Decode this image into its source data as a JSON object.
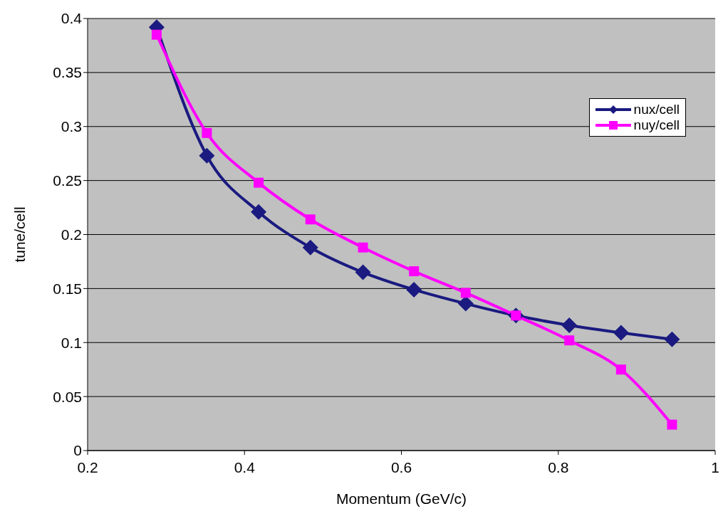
{
  "chart_data": {
    "type": "line",
    "xlabel": "Momentum (GeV/c)",
    "ylabel": "tune/cell",
    "xlim": [
      0.2,
      1
    ],
    "xticks": [
      0.2,
      0.4,
      0.6,
      0.8,
      1
    ],
    "ylim": [
      0,
      0.4
    ],
    "yticks": [
      0,
      0.05,
      0.1,
      0.15,
      0.2,
      0.25,
      0.3,
      0.35,
      0.4
    ],
    "x": [
      0.288,
      0.352,
      0.418,
      0.484,
      0.551,
      0.616,
      0.682,
      0.746,
      0.814,
      0.88,
      0.945
    ],
    "series": [
      {
        "name": "nux/cell",
        "color": "#1a1a80",
        "marker": "diamond",
        "values": [
          0.392,
          0.273,
          0.221,
          0.188,
          0.165,
          0.149,
          0.136,
          0.125,
          0.116,
          0.109,
          0.103
        ]
      },
      {
        "name": "nuy/cell",
        "color": "#ff00ff",
        "marker": "square",
        "values": [
          0.385,
          0.294,
          0.248,
          0.214,
          0.188,
          0.166,
          0.146,
          0.125,
          0.102,
          0.075,
          0.024
        ]
      }
    ],
    "grid": "y",
    "legend": "top right",
    "line_style": "solid"
  }
}
